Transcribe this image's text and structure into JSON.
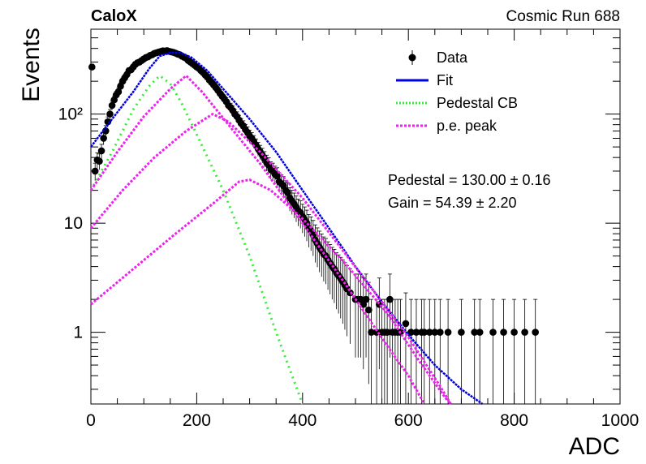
{
  "header": {
    "experiment": "CaloX",
    "run": "Cosmic Run 688"
  },
  "fit_results": {
    "pedestal": "Pedestal = 130.00 ± 0.16",
    "gain": "Gain = 54.39 ± 2.20"
  },
  "chart_data": {
    "type": "scatter",
    "xlabel": "ADC",
    "ylabel": "Events",
    "xlim": [
      0,
      1000
    ],
    "ylim": [
      0.22,
      600
    ],
    "yscale": "log",
    "x_ticks": [
      0,
      200,
      400,
      600,
      800,
      1000
    ],
    "y_ticks": [
      {
        "value": 1,
        "label": "1"
      },
      {
        "value": 10,
        "label": "10"
      },
      {
        "value": 100,
        "label": "10²"
      }
    ],
    "grid": false,
    "legend_position": "top-right",
    "legend": [
      {
        "label": "Data",
        "style": "marker",
        "color": "#000000"
      },
      {
        "label": "Fit",
        "style": "solid",
        "color": "#0000dd"
      },
      {
        "label": "Pedestal CB",
        "style": "dotted",
        "color": "#33ee33"
      },
      {
        "label": "p.e. peak",
        "style": "dotted",
        "color": "#ee22ee"
      }
    ],
    "data_points": [
      [
        2,
        270
      ],
      [
        8,
        30
      ],
      [
        12,
        38
      ],
      [
        16,
        37
      ],
      [
        20,
        46
      ],
      [
        24,
        60
      ],
      [
        28,
        70
      ],
      [
        32,
        85
      ],
      [
        36,
        100
      ],
      [
        40,
        120
      ],
      [
        44,
        135
      ],
      [
        48,
        150
      ],
      [
        52,
        160
      ],
      [
        56,
        180
      ],
      [
        60,
        200
      ],
      [
        64,
        215
      ],
      [
        68,
        230
      ],
      [
        72,
        250
      ],
      [
        76,
        255
      ],
      [
        80,
        270
      ],
      [
        84,
        285
      ],
      [
        88,
        295
      ],
      [
        92,
        300
      ],
      [
        96,
        310
      ],
      [
        100,
        320
      ],
      [
        104,
        330
      ],
      [
        108,
        335
      ],
      [
        112,
        345
      ],
      [
        116,
        350
      ],
      [
        120,
        360
      ],
      [
        124,
        365
      ],
      [
        128,
        370
      ],
      [
        132,
        375
      ],
      [
        136,
        380
      ],
      [
        140,
        378
      ],
      [
        144,
        382
      ],
      [
        148,
        376
      ],
      [
        152,
        372
      ],
      [
        156,
        368
      ],
      [
        160,
        362
      ],
      [
        164,
        355
      ],
      [
        168,
        350
      ],
      [
        172,
        340
      ],
      [
        176,
        332
      ],
      [
        180,
        325
      ],
      [
        184,
        310
      ],
      [
        188,
        300
      ],
      [
        192,
        290
      ],
      [
        196,
        280
      ],
      [
        200,
        270
      ],
      [
        204,
        262
      ],
      [
        208,
        250
      ],
      [
        212,
        240
      ],
      [
        216,
        228
      ],
      [
        220,
        218
      ],
      [
        224,
        205
      ],
      [
        228,
        195
      ],
      [
        232,
        185
      ],
      [
        236,
        175
      ],
      [
        240,
        165
      ],
      [
        244,
        155
      ],
      [
        248,
        146
      ],
      [
        252,
        138
      ],
      [
        256,
        130
      ],
      [
        260,
        120
      ],
      [
        264,
        115
      ],
      [
        268,
        108
      ],
      [
        272,
        100
      ],
      [
        276,
        95
      ],
      [
        280,
        88
      ],
      [
        284,
        82
      ],
      [
        288,
        78
      ],
      [
        292,
        72
      ],
      [
        296,
        68
      ],
      [
        300,
        63
      ],
      [
        304,
        60
      ],
      [
        308,
        56
      ],
      [
        312,
        52
      ],
      [
        316,
        48
      ],
      [
        320,
        45
      ],
      [
        324,
        42
      ],
      [
        328,
        39
      ],
      [
        332,
        36
      ],
      [
        336,
        34
      ],
      [
        340,
        31
      ],
      [
        344,
        30
      ],
      [
        348,
        28
      ],
      [
        352,
        27
      ],
      [
        356,
        24
      ],
      [
        360,
        23
      ],
      [
        364,
        22
      ],
      [
        368,
        20
      ],
      [
        372,
        19
      ],
      [
        376,
        17
      ],
      [
        380,
        16
      ],
      [
        384,
        15
      ],
      [
        388,
        14
      ],
      [
        392,
        13
      ],
      [
        396,
        12.5
      ],
      [
        400,
        11.5
      ],
      [
        404,
        10.8
      ],
      [
        408,
        10
      ],
      [
        412,
        9
      ],
      [
        416,
        8.5
      ],
      [
        420,
        7.8
      ],
      [
        424,
        7
      ],
      [
        428,
        6.5
      ],
      [
        432,
        6
      ],
      [
        436,
        5.6
      ],
      [
        440,
        5.2
      ],
      [
        444,
        5
      ],
      [
        448,
        4.6
      ],
      [
        452,
        4.3
      ],
      [
        456,
        4
      ],
      [
        460,
        3.8
      ],
      [
        464,
        3.5
      ],
      [
        468,
        3.3
      ],
      [
        472,
        3.1
      ],
      [
        476,
        2.9
      ],
      [
        480,
        2.7
      ],
      [
        484,
        2.5
      ],
      [
        490,
        2.3
      ],
      [
        500,
        2
      ],
      [
        505,
        2
      ],
      [
        510,
        2
      ],
      [
        515,
        1.8
      ],
      [
        520,
        2
      ],
      [
        525,
        1.6
      ],
      [
        530,
        1
      ],
      [
        540,
        1
      ],
      [
        545,
        1.8
      ],
      [
        550,
        1
      ],
      [
        555,
        1
      ],
      [
        560,
        1
      ],
      [
        565,
        2
      ],
      [
        570,
        1
      ],
      [
        575,
        1
      ],
      [
        580,
        1
      ],
      [
        585,
        1
      ],
      [
        595,
        1.2
      ],
      [
        605,
        1
      ],
      [
        615,
        1
      ],
      [
        625,
        1
      ],
      [
        630,
        1
      ],
      [
        640,
        1
      ],
      [
        650,
        1
      ],
      [
        660,
        1
      ],
      [
        675,
        1
      ],
      [
        700,
        1
      ],
      [
        725,
        1
      ],
      [
        735,
        1
      ],
      [
        760,
        1
      ],
      [
        780,
        1
      ],
      [
        800,
        1
      ],
      [
        820,
        1
      ],
      [
        840,
        1
      ]
    ],
    "series": [
      {
        "name": "Fit",
        "points": [
          [
            0,
            50
          ],
          [
            40,
            90
          ],
          [
            80,
            160
          ],
          [
            110,
            260
          ],
          [
            130,
            340
          ],
          [
            150,
            365
          ],
          [
            170,
            365
          ],
          [
            190,
            330
          ],
          [
            220,
            250
          ],
          [
            260,
            150
          ],
          [
            300,
            90
          ],
          [
            350,
            45
          ],
          [
            400,
            20
          ],
          [
            450,
            9
          ],
          [
            500,
            4
          ],
          [
            550,
            1.9
          ],
          [
            600,
            0.95
          ],
          [
            650,
            0.5
          ],
          [
            700,
            0.3
          ],
          [
            740,
            0.22
          ]
        ]
      },
      {
        "name": "Pedestal CB",
        "points": [
          [
            0,
            20
          ],
          [
            40,
            45
          ],
          [
            80,
            110
          ],
          [
            110,
            180
          ],
          [
            130,
            225
          ],
          [
            150,
            190
          ],
          [
            170,
            130
          ],
          [
            200,
            65
          ],
          [
            250,
            20
          ],
          [
            300,
            5
          ],
          [
            350,
            1
          ],
          [
            400,
            0.22
          ]
        ]
      },
      {
        "name": "p.e. peak",
        "peak": 1,
        "points": [
          [
            0,
            20
          ],
          [
            50,
            45
          ],
          [
            100,
            95
          ],
          [
            150,
            170
          ],
          [
            180,
            225
          ],
          [
            210,
            160
          ],
          [
            260,
            80
          ],
          [
            320,
            35
          ],
          [
            400,
            10
          ],
          [
            480,
            2.8
          ],
          [
            560,
            0.75
          ],
          [
            600,
            0.4
          ],
          [
            630,
            0.22
          ]
        ]
      },
      {
        "name": "p.e. peak",
        "peak": 2,
        "points": [
          [
            0,
            9
          ],
          [
            60,
            20
          ],
          [
            120,
            40
          ],
          [
            180,
            70
          ],
          [
            230,
            100
          ],
          [
            260,
            85
          ],
          [
            320,
            45
          ],
          [
            400,
            17
          ],
          [
            480,
            5.3
          ],
          [
            540,
            2.2
          ],
          [
            600,
            0.9
          ],
          [
            660,
            0.32
          ],
          [
            680,
            0.22
          ]
        ]
      },
      {
        "name": "p.e. peak",
        "peak": 3,
        "points": [
          [
            0,
            1.8
          ],
          [
            80,
            3.8
          ],
          [
            160,
            8
          ],
          [
            230,
            15
          ],
          [
            280,
            24
          ],
          [
            300,
            25
          ],
          [
            340,
            20
          ],
          [
            400,
            11
          ],
          [
            480,
            4.3
          ],
          [
            560,
            1.5
          ],
          [
            620,
            0.55
          ],
          [
            670,
            0.25
          ],
          [
            680,
            0.22
          ]
        ]
      }
    ]
  }
}
